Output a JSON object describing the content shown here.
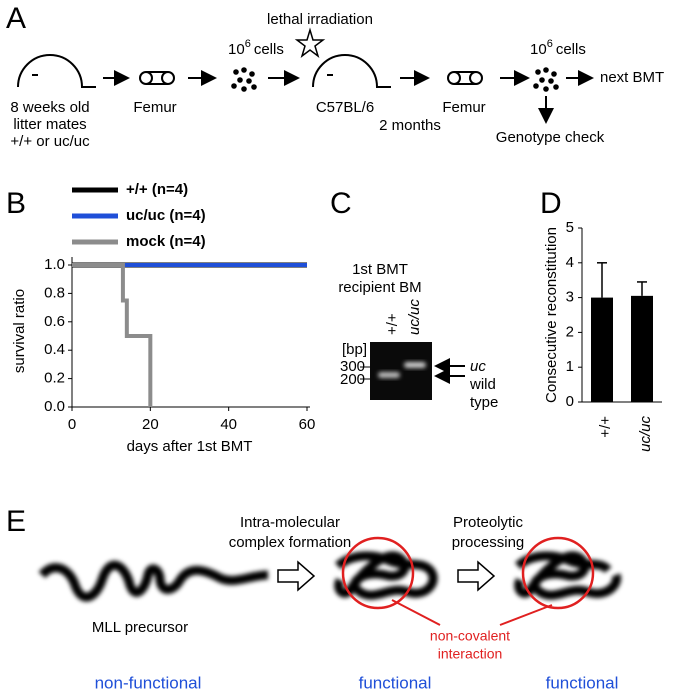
{
  "panel_a": {
    "letter": "A",
    "irradiation": "lethal irradiation",
    "donor": [
      "8 weeks old",
      "litter mates",
      "+/+ or uc/uc"
    ],
    "femur_1": "Femur",
    "cells_1": {
      "base": "10",
      "exp": "6",
      "unit": "cells"
    },
    "recipient": "C57BL/6",
    "femur_2": "Femur",
    "duration": "2 months",
    "cells_2": {
      "base": "10",
      "exp": "6",
      "unit": "cells"
    },
    "next": "next BMT",
    "check": "Genotype check"
  },
  "chart_data": [
    {
      "type": "line",
      "panel": "B",
      "x_label": "days after 1st BMT",
      "y_label": "survival ratio",
      "xlim": [
        0,
        60
      ],
      "xticks": [
        0,
        20,
        40,
        60
      ],
      "ylim": [
        0,
        1
      ],
      "yticks": [
        {
          "value": 0,
          "label": "0.0"
        },
        {
          "value": 0.2,
          "label": "0.2"
        },
        {
          "value": 0.4,
          "label": "0.4"
        },
        {
          "value": 0.6,
          "label": "0.6"
        },
        {
          "value": 0.8,
          "label": "0.8"
        },
        {
          "value": 1,
          "label": "1.0"
        }
      ],
      "series": [
        {
          "name": "+/+ (n=4)",
          "color": "#000000",
          "x": [
            0,
            60
          ],
          "values": [
            1,
            1
          ]
        },
        {
          "name": "uc/uc (n=4)",
          "color": "#1f4fd8",
          "x": [
            0,
            60
          ],
          "values": [
            1,
            1
          ]
        },
        {
          "name": "mock (n=4)",
          "color": "#8c8c8c",
          "x": [
            0,
            13,
            13,
            14,
            14,
            20,
            20
          ],
          "values": [
            1,
            1,
            0.75,
            0.75,
            0.5,
            0.5,
            0
          ]
        }
      ]
    },
    {
      "type": "bar",
      "panel": "D",
      "y_label": "Consecutive  reconstitution",
      "categories": [
        "+/+",
        "uc/uc"
      ],
      "values": [
        3,
        3.05
      ],
      "errors": [
        1,
        0.4
      ],
      "color": "#000000",
      "ylim": [
        0,
        5
      ],
      "yticks": [
        0,
        1,
        2,
        3,
        4,
        5
      ]
    }
  ],
  "panel_c": {
    "letter": "C",
    "title": [
      "1st BMT",
      "recipient BM"
    ],
    "lanes": [
      "+/+",
      "uc/uc"
    ],
    "size_unit": "[bp]",
    "sizes": [
      300,
      200
    ],
    "bands": [
      "uc",
      "wild",
      "type"
    ]
  },
  "panel_e": {
    "letter": "E",
    "step_1": [
      "Intra-molecular",
      "complex formation"
    ],
    "step_2": [
      "Proteolytic",
      "processing"
    ],
    "precursor": "MLL precursor",
    "interaction": [
      "non-covalent",
      "interaction"
    ],
    "states": [
      "non-functional",
      "functional",
      "functional"
    ]
  }
}
